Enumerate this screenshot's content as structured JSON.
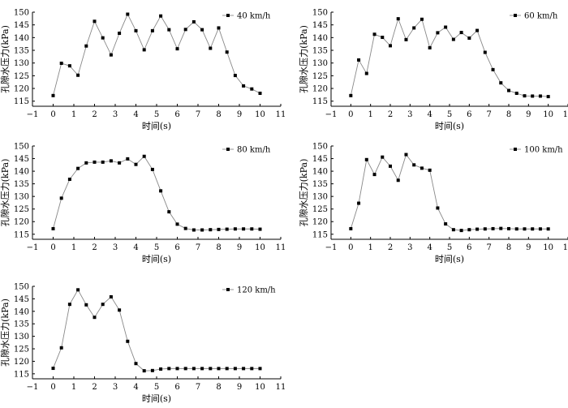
{
  "figure": {
    "panel_order": [
      "40",
      "60",
      "80",
      "100",
      "120"
    ]
  },
  "chart_data": [
    {
      "type": "line",
      "title": "",
      "xlabel": "时间(s)",
      "ylabel": "孔隙水压力(kPa)",
      "xlim": [
        -1,
        11
      ],
      "ylim": [
        113,
        150
      ],
      "xticks": [
        -1,
        0,
        1,
        2,
        3,
        4,
        5,
        6,
        7,
        8,
        9,
        10,
        11
      ],
      "xtick_labels": [
        "−1",
        "0",
        "1",
        "2",
        "3",
        "4",
        "5",
        "6",
        "7",
        "8",
        "9",
        "10",
        "11"
      ],
      "yticks": [
        115,
        120,
        125,
        130,
        135,
        140,
        145,
        150
      ],
      "ytick_labels": [
        "115",
        "120",
        "125",
        "130",
        "135",
        "140",
        "145",
        "150"
      ],
      "legend_position": "top-right",
      "series": [
        {
          "name": "40 km/h",
          "color": "#888888",
          "marker": "square",
          "x": [
            0,
            0.4,
            0.8,
            1.2,
            1.6,
            2.0,
            2.4,
            2.8,
            3.2,
            3.6,
            4.0,
            4.4,
            4.8,
            5.2,
            5.6,
            6.0,
            6.4,
            6.8,
            7.2,
            7.6,
            8.0,
            8.4,
            8.8,
            9.2,
            9.6,
            10.0
          ],
          "y": [
            117.2,
            129.9,
            128.9,
            125.2,
            136.7,
            146.4,
            139.9,
            133.2,
            141.7,
            149.2,
            142.7,
            135.2,
            142.7,
            148.5,
            143.1,
            135.6,
            143.2,
            146.2,
            143.1,
            135.8,
            143.8,
            134.3,
            125.1,
            121.0,
            119.8,
            118.1
          ]
        }
      ]
    },
    {
      "type": "line",
      "title": "",
      "xlabel": "时间(s)",
      "ylabel": "孔隙水压力(kPa)",
      "xlim": [
        -1,
        11
      ],
      "ylim": [
        113,
        150
      ],
      "xticks": [
        -1,
        0,
        1,
        2,
        3,
        4,
        5,
        6,
        7,
        8,
        9,
        10,
        11
      ],
      "xtick_labels": [
        "−1",
        "0",
        "1",
        "2",
        "3",
        "4",
        "5",
        "6",
        "7",
        "8",
        "9",
        "10",
        "11"
      ],
      "yticks": [
        115,
        120,
        125,
        130,
        135,
        140,
        145,
        150
      ],
      "ytick_labels": [
        "115",
        "120",
        "125",
        "130",
        "135",
        "140",
        "145",
        "150"
      ],
      "legend_position": "top-right",
      "series": [
        {
          "name": "60 km/h",
          "color": "#888888",
          "marker": "square",
          "x": [
            0,
            0.4,
            0.8,
            1.2,
            1.6,
            2.0,
            2.4,
            2.8,
            3.2,
            3.6,
            4.0,
            4.4,
            4.8,
            5.2,
            5.6,
            6.0,
            6.4,
            6.8,
            7.2,
            7.6,
            8.0,
            8.4,
            8.8,
            9.2,
            9.6,
            10.0
          ],
          "y": [
            117.2,
            131.2,
            125.9,
            141.3,
            140.1,
            136.8,
            147.4,
            139.2,
            143.8,
            147.2,
            136.0,
            141.9,
            144.1,
            139.3,
            142.0,
            139.8,
            142.8,
            134.2,
            127.4,
            122.2,
            119.2,
            118.1,
            117.1,
            117.0,
            117.0,
            116.8
          ]
        }
      ]
    },
    {
      "type": "line",
      "title": "",
      "xlabel": "时间(s)",
      "ylabel": "孔隙水压力(kPa)",
      "xlim": [
        -1,
        11
      ],
      "ylim": [
        113,
        150
      ],
      "xticks": [
        -1,
        0,
        1,
        2,
        3,
        4,
        5,
        6,
        7,
        8,
        9,
        10,
        11
      ],
      "xtick_labels": [
        "−1",
        "0",
        "1",
        "2",
        "3",
        "4",
        "5",
        "6",
        "7",
        "8",
        "9",
        "10",
        "11"
      ],
      "yticks": [
        115,
        120,
        125,
        130,
        135,
        140,
        145,
        150
      ],
      "ytick_labels": [
        "115",
        "120",
        "125",
        "130",
        "135",
        "140",
        "145",
        "150"
      ],
      "legend_position": "top-right",
      "series": [
        {
          "name": "80 km/h",
          "color": "#888888",
          "marker": "square",
          "x": [
            0,
            0.4,
            0.8,
            1.2,
            1.6,
            2.0,
            2.4,
            2.8,
            3.2,
            3.6,
            4.0,
            4.4,
            4.8,
            5.2,
            5.6,
            6.0,
            6.4,
            6.8,
            7.2,
            7.6,
            8.0,
            8.4,
            8.8,
            9.2,
            9.6,
            10.0
          ],
          "y": [
            117.2,
            129.3,
            136.8,
            141.1,
            143.3,
            143.6,
            143.6,
            144.1,
            143.3,
            144.9,
            142.7,
            145.9,
            140.7,
            132.2,
            123.9,
            119.0,
            117.3,
            116.7,
            116.7,
            116.8,
            116.9,
            117.0,
            117.1,
            117.1,
            117.1,
            117.0
          ]
        }
      ]
    },
    {
      "type": "line",
      "title": "",
      "xlabel": "时间(s)",
      "ylabel": "孔隙水压力(kPa)",
      "xlim": [
        -1,
        11
      ],
      "ylim": [
        113,
        150
      ],
      "xticks": [
        -1,
        0,
        1,
        2,
        3,
        4,
        5,
        6,
        7,
        8,
        9,
        10,
        11
      ],
      "xtick_labels": [
        "−1",
        "0",
        "1",
        "2",
        "3",
        "4",
        "5",
        "6",
        "7",
        "8",
        "9",
        "10",
        "11"
      ],
      "yticks": [
        115,
        120,
        125,
        130,
        135,
        140,
        145,
        150
      ],
      "ytick_labels": [
        "115",
        "120",
        "125",
        "130",
        "135",
        "140",
        "145",
        "150"
      ],
      "legend_position": "top-right",
      "series": [
        {
          "name": "100 km/h",
          "color": "#888888",
          "marker": "square",
          "x": [
            0,
            0.4,
            0.8,
            1.2,
            1.6,
            2.0,
            2.4,
            2.8,
            3.2,
            3.6,
            4.0,
            4.4,
            4.8,
            5.2,
            5.6,
            6.0,
            6.4,
            6.8,
            7.2,
            7.6,
            8.0,
            8.4,
            8.8,
            9.2,
            9.6,
            10.0
          ],
          "y": [
            117.2,
            127.3,
            144.6,
            138.7,
            145.6,
            142.0,
            136.4,
            146.6,
            142.5,
            141.2,
            140.4,
            125.4,
            119.1,
            116.8,
            116.5,
            116.8,
            117.0,
            117.1,
            117.2,
            117.3,
            117.2,
            117.1,
            117.1,
            117.1,
            117.1,
            117.1
          ]
        }
      ]
    },
    {
      "type": "line",
      "title": "",
      "xlabel": "时间(s)",
      "ylabel": "孔隙水压力(kPa)",
      "xlim": [
        -1,
        11
      ],
      "ylim": [
        113,
        150
      ],
      "xticks": [
        -1,
        0,
        1,
        2,
        3,
        4,
        5,
        6,
        7,
        8,
        9,
        10,
        11
      ],
      "xtick_labels": [
        "−1",
        "0",
        "1",
        "2",
        "3",
        "4",
        "5",
        "6",
        "7",
        "8",
        "9",
        "10",
        "11"
      ],
      "yticks": [
        115,
        120,
        125,
        130,
        135,
        140,
        145,
        150
      ],
      "ytick_labels": [
        "115",
        "120",
        "125",
        "130",
        "135",
        "140",
        "145",
        "150"
      ],
      "legend_position": "top-right",
      "series": [
        {
          "name": "120 km/h",
          "color": "#888888",
          "marker": "square",
          "x": [
            0,
            0.4,
            0.8,
            1.2,
            1.6,
            2.0,
            2.4,
            2.8,
            3.2,
            3.6,
            4.0,
            4.4,
            4.8,
            5.2,
            5.6,
            6.0,
            6.4,
            6.8,
            7.2,
            7.6,
            8.0,
            8.4,
            8.8,
            9.2,
            9.6,
            10.0
          ],
          "y": [
            117.2,
            125.4,
            142.8,
            148.6,
            142.6,
            137.6,
            142.8,
            145.8,
            140.5,
            128.0,
            119.1,
            116.2,
            116.3,
            116.9,
            117.1,
            117.1,
            117.1,
            117.1,
            117.1,
            117.1,
            117.1,
            117.1,
            117.1,
            117.1,
            117.1,
            117.1
          ]
        }
      ]
    }
  ]
}
